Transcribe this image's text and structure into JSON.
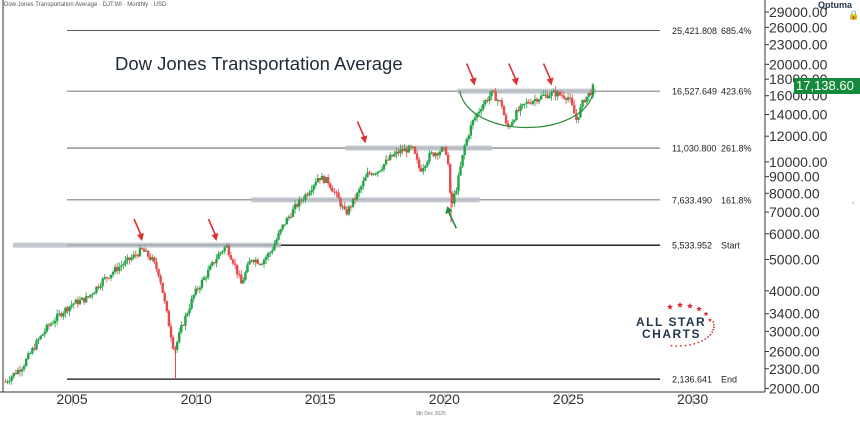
{
  "header": {
    "title_strip": "Dow Jones Transportation Average · DJT:WI · Monthly · USD",
    "main_title": "Dow Jones Transportation Average",
    "last_price": "17,138.60",
    "footer_date": "9th Dec 2025",
    "brand": "Optuma"
  },
  "logo": {
    "line1": "ALL STAR",
    "line2": "CHARTS",
    "star_color": "#d62b3a",
    "text_color": "#24364e"
  },
  "colors": {
    "up": "#22a447",
    "down": "#e64a4a",
    "arrow_red": "#e03131",
    "arrow_green": "#1f8b3a",
    "arc": "#2a8a3a",
    "zone": "#b9c0c7",
    "price_tag": "#168a3c"
  },
  "chart_data": {
    "type": "candlestick",
    "title": "Dow Jones Transportation Average",
    "frequency": "Monthly",
    "currency": "USD",
    "scale": "log",
    "x_range": [
      2002.2,
      2032.9
    ],
    "y_range": [
      1950,
      29000
    ],
    "x_ticks": [
      2005,
      2010,
      2015,
      2020,
      2025,
      2030
    ],
    "y_ticks": [
      {
        "v": 2000,
        "label": "2000.00"
      },
      {
        "v": 2300,
        "label": "2300.00"
      },
      {
        "v": 2600,
        "label": "2600.00"
      },
      {
        "v": 3000,
        "label": "3000.00"
      },
      {
        "v": 3400,
        "label": "3400.00"
      },
      {
        "v": 4000,
        "label": "4000.00"
      },
      {
        "v": 5000,
        "label": "5000.00"
      },
      {
        "v": 6000,
        "label": "6000.00"
      },
      {
        "v": 7000,
        "label": "7000.00"
      },
      {
        "v": 8000,
        "label": "8000.00"
      },
      {
        "v": 9000,
        "label": "9000.00"
      },
      {
        "v": 10000,
        "label": "10000.00"
      },
      {
        "v": 12000,
        "label": "12000.00"
      },
      {
        "v": 14000,
        "label": "14000.00"
      },
      {
        "v": 16000,
        "label": "16000.00"
      },
      {
        "v": 18000,
        "label": "18000.00"
      },
      {
        "v": 20000,
        "label": "20000.00"
      },
      {
        "v": 23000,
        "label": "23000.00"
      },
      {
        "v": 26000,
        "label": "26000.00"
      },
      {
        "v": 29000,
        "label": "29000.00"
      }
    ],
    "fib_levels": [
      {
        "value": 25421.808,
        "label": "25,421.808",
        "ratio": "685.4%",
        "bold": false
      },
      {
        "value": 16527.649,
        "label": "16,527.649",
        "ratio": "423.6%",
        "bold": false
      },
      {
        "value": 11030.8,
        "label": "11,030.800",
        "ratio": "261.8%",
        "bold": false
      },
      {
        "value": 7633.49,
        "label": "7,633.490",
        "ratio": "161.8%",
        "bold": false
      },
      {
        "value": 5533.952,
        "label": "5,533.952",
        "ratio": "Start",
        "bold": true
      },
      {
        "value": 2136.641,
        "label": "2,136.641",
        "ratio": "End",
        "bold": true
      }
    ],
    "zones": [
      {
        "x0": 2002.6,
        "x1": 2013.4,
        "y": 5533.952
      },
      {
        "x0": 2012.2,
        "x1": 2021.4,
        "y": 7633.49
      },
      {
        "x0": 2016.0,
        "x1": 2021.9,
        "y": 11030.8
      },
      {
        "x0": 2020.5,
        "x1": 2026.1,
        "y": 16527.649
      }
    ],
    "arrows": [
      {
        "x": 2007.8,
        "y": 5700,
        "color": "red"
      },
      {
        "x": 2010.8,
        "y": 5700,
        "color": "red"
      },
      {
        "x": 2016.8,
        "y": 11400,
        "color": "red"
      },
      {
        "x": 2021.2,
        "y": 17200,
        "color": "red"
      },
      {
        "x": 2022.9,
        "y": 17200,
        "color": "red"
      },
      {
        "x": 2024.3,
        "y": 17200,
        "color": "red"
      },
      {
        "x": 2020.1,
        "y": 7300,
        "color": "green"
      }
    ],
    "arc": {
      "x0": 2020.6,
      "x1": 2026.0,
      "top": 16527.649,
      "bottom": 12400
    },
    "last_price": 17138.6,
    "waypoints": [
      [
        2002.3,
        2100
      ],
      [
        2003.0,
        2350
      ],
      [
        2003.6,
        2800
      ],
      [
        2004.0,
        3100
      ],
      [
        2004.6,
        3450
      ],
      [
        2005.0,
        3650
      ],
      [
        2005.6,
        3800
      ],
      [
        2006.2,
        4300
      ],
      [
        2006.8,
        4700
      ],
      [
        2007.3,
        5000
      ],
      [
        2007.8,
        5350
      ],
      [
        2008.2,
        5000
      ],
      [
        2008.5,
        4500
      ],
      [
        2008.8,
        3400
      ],
      [
        2009.1,
        2600
      ],
      [
        2009.4,
        3100
      ],
      [
        2009.9,
        3900
      ],
      [
        2010.4,
        4500
      ],
      [
        2010.9,
        5200
      ],
      [
        2011.2,
        5500
      ],
      [
        2011.5,
        4900
      ],
      [
        2011.8,
        4200
      ],
      [
        2012.2,
        5050
      ],
      [
        2012.6,
        4900
      ],
      [
        2013.0,
        5300
      ],
      [
        2013.5,
        6400
      ],
      [
        2014.0,
        7300
      ],
      [
        2014.5,
        8100
      ],
      [
        2014.9,
        9000
      ],
      [
        2015.3,
        8700
      ],
      [
        2015.7,
        7700
      ],
      [
        2016.0,
        6900
      ],
      [
        2016.5,
        8000
      ],
      [
        2016.9,
        9200
      ],
      [
        2017.3,
        9400
      ],
      [
        2017.8,
        10300
      ],
      [
        2018.2,
        10800
      ],
      [
        2018.7,
        11000
      ],
      [
        2019.0,
        9400
      ],
      [
        2019.4,
        10500
      ],
      [
        2019.9,
        10900
      ],
      [
        2020.1,
        10700
      ],
      [
        2020.25,
        7200
      ],
      [
        2020.5,
        8500
      ],
      [
        2020.8,
        11200
      ],
      [
        2021.1,
        13200
      ],
      [
        2021.5,
        15000
      ],
      [
        2021.9,
        16300
      ],
      [
        2022.3,
        15000
      ],
      [
        2022.5,
        12600
      ],
      [
        2022.9,
        14200
      ],
      [
        2023.3,
        15200
      ],
      [
        2023.7,
        15700
      ],
      [
        2024.0,
        16000
      ],
      [
        2024.4,
        16300
      ],
      [
        2024.8,
        16000
      ],
      [
        2025.0,
        15800
      ],
      [
        2025.3,
        13500
      ],
      [
        2025.6,
        15500
      ],
      [
        2025.9,
        16500
      ],
      [
        2026.0,
        17138.6
      ]
    ]
  }
}
